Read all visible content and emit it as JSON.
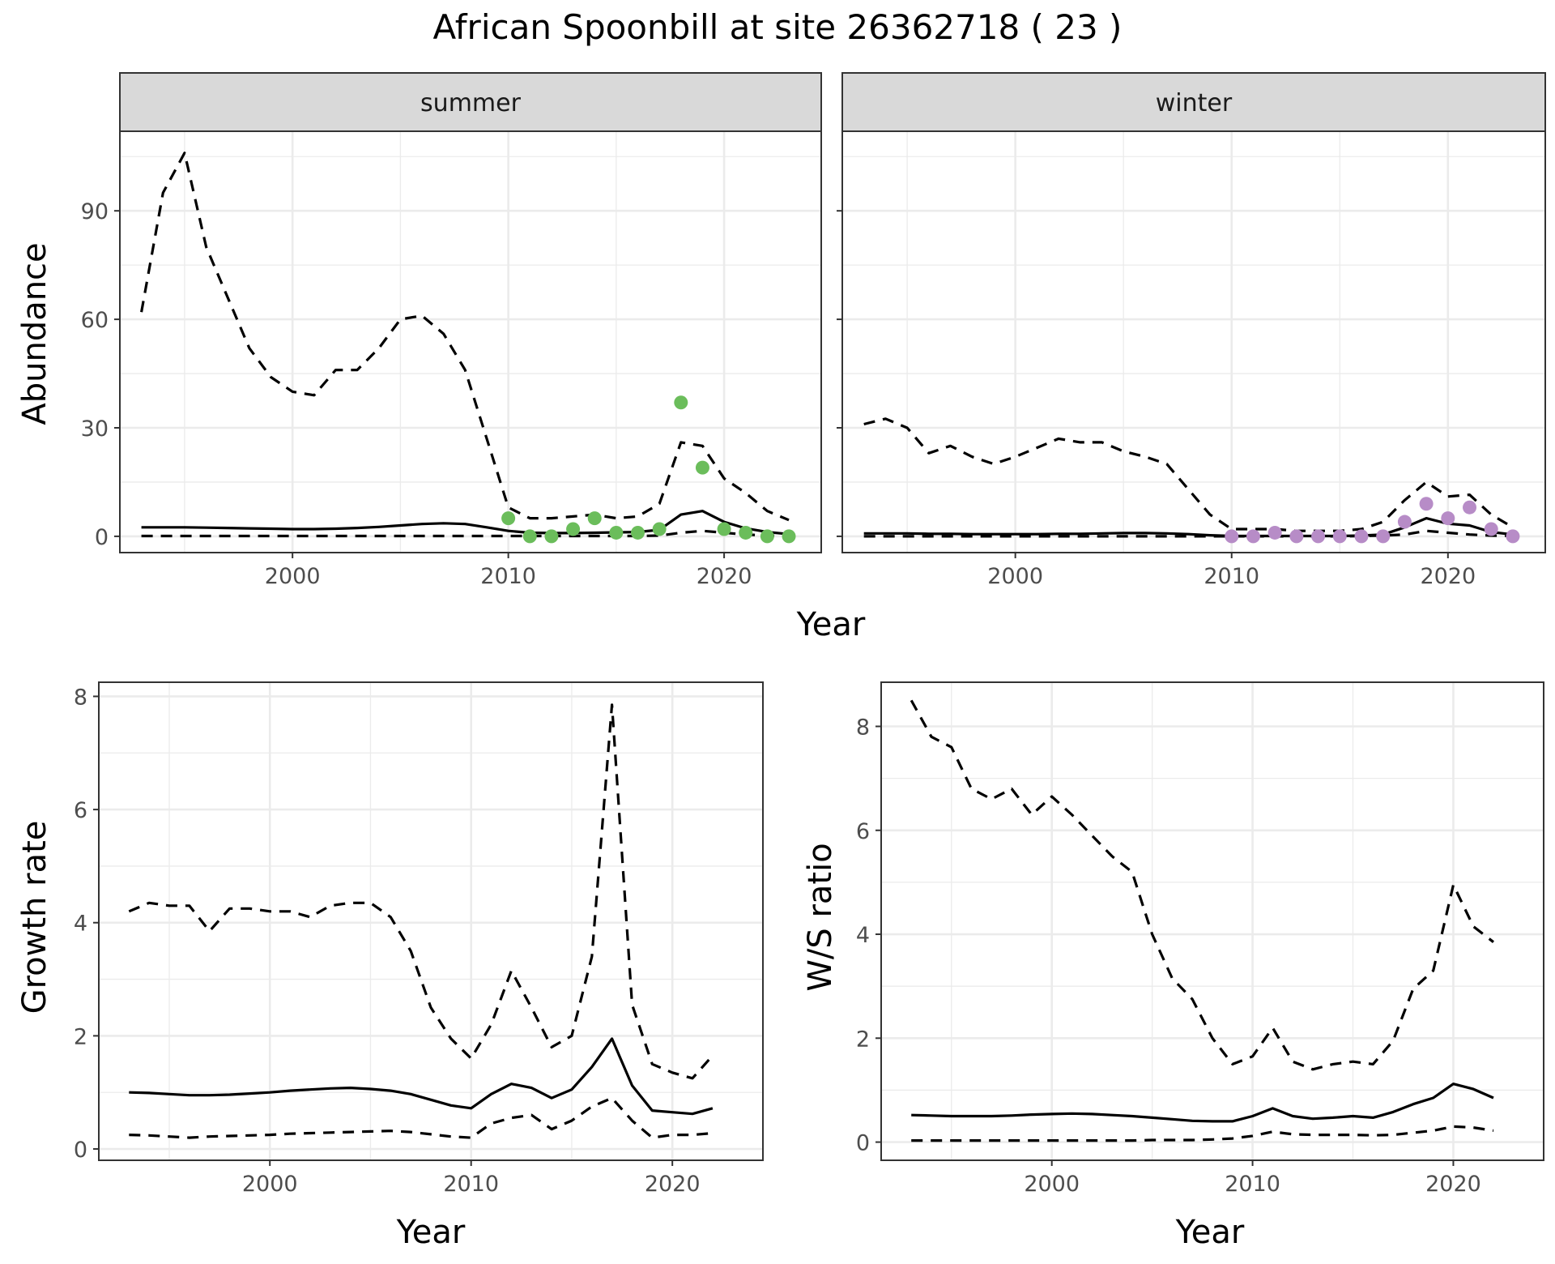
{
  "title": "African Spoonbill at site 26362718 ( 23 )",
  "colors": {
    "summer_points": "#6bbd5b",
    "winter_points": "#b78cc7",
    "line": "#000000"
  },
  "chart_data": [
    {
      "type": "line",
      "facet": "summer",
      "xlabel": "Year",
      "ylabel": "Abundance",
      "xlim": [
        1992,
        2024.5
      ],
      "ylim": [
        -4.5,
        112
      ],
      "xticks": [
        2000,
        2010,
        2020
      ],
      "yticks": [
        0,
        30,
        60,
        90
      ],
      "x": [
        1993,
        1994,
        1995,
        1996,
        1997,
        1998,
        1999,
        2000,
        2001,
        2002,
        2003,
        2004,
        2005,
        2006,
        2007,
        2008,
        2009,
        2010,
        2011,
        2012,
        2013,
        2014,
        2015,
        2016,
        2017,
        2018,
        2019,
        2020,
        2021,
        2022,
        2023
      ],
      "series": [
        {
          "role": "mean",
          "values": [
            2.5,
            2.5,
            2.5,
            2.4,
            2.3,
            2.2,
            2.1,
            2.0,
            2.0,
            2.1,
            2.3,
            2.6,
            3.0,
            3.4,
            3.6,
            3.4,
            2.5,
            1.5,
            1.0,
            0.9,
            0.9,
            1.0,
            1.1,
            1.2,
            1.8,
            6.0,
            7.0,
            4.0,
            2.2,
            1.2,
            0.6
          ]
        },
        {
          "role": "upper",
          "values": [
            62,
            95,
            106,
            80,
            66,
            52,
            44,
            40,
            39,
            46,
            46,
            52,
            60,
            61,
            56,
            46,
            27,
            8,
            5.0,
            5.0,
            5.5,
            6.0,
            5.0,
            5.5,
            9.0,
            26,
            25,
            16,
            12,
            7,
            4.5
          ]
        },
        {
          "role": "lower",
          "values": [
            0.1,
            0.1,
            0.1,
            0.1,
            0.1,
            0.1,
            0.1,
            0.1,
            0.1,
            0.1,
            0.1,
            0.1,
            0.1,
            0.1,
            0.1,
            0.1,
            0.1,
            0.1,
            0.1,
            0.1,
            0.1,
            0.1,
            0.1,
            0.1,
            0.2,
            1.0,
            1.5,
            1.0,
            0.5,
            0.2,
            0.1
          ]
        }
      ],
      "points": {
        "x": [
          2010,
          2011,
          2012,
          2013,
          2014,
          2015,
          2016,
          2017,
          2018,
          2019,
          2020,
          2021,
          2022,
          2023
        ],
        "y": [
          5,
          0,
          0,
          2,
          5,
          1,
          1,
          2,
          37,
          19,
          2,
          1,
          0,
          0
        ]
      }
    },
    {
      "type": "line",
      "facet": "winter",
      "xlabel": "Year",
      "ylabel": "Abundance",
      "xlim": [
        1992,
        2024.5
      ],
      "ylim": [
        -4.5,
        112
      ],
      "xticks": [
        2000,
        2010,
        2020
      ],
      "yticks": [
        0,
        30,
        60,
        90
      ],
      "x": [
        1993,
        1994,
        1995,
        1996,
        1997,
        1998,
        1999,
        2000,
        2001,
        2002,
        2003,
        2004,
        2005,
        2006,
        2007,
        2008,
        2009,
        2010,
        2011,
        2012,
        2013,
        2014,
        2015,
        2016,
        2017,
        2018,
        2019,
        2020,
        2021,
        2022,
        2023
      ],
      "series": [
        {
          "role": "mean",
          "values": [
            0.8,
            0.8,
            0.8,
            0.7,
            0.7,
            0.6,
            0.6,
            0.6,
            0.6,
            0.7,
            0.7,
            0.8,
            0.9,
            0.9,
            0.8,
            0.6,
            0.3,
            0.1,
            0.1,
            0.1,
            0.1,
            0.1,
            0.1,
            0.2,
            0.5,
            2.5,
            5.0,
            3.5,
            3.0,
            1.2,
            0.5
          ]
        },
        {
          "role": "upper",
          "values": [
            31,
            32.5,
            30,
            23,
            25,
            22,
            20,
            22,
            24.5,
            27,
            26,
            26,
            23.5,
            22,
            20,
            13,
            6,
            2,
            2,
            2,
            1.5,
            1.5,
            1.5,
            2,
            4,
            10,
            15,
            11,
            11.5,
            6,
            2.5
          ]
        },
        {
          "role": "lower",
          "values": [
            0.0,
            0.0,
            0.0,
            0.0,
            0.0,
            0.0,
            0.0,
            0.0,
            0.0,
            0.0,
            0.0,
            0.0,
            0.0,
            0.0,
            0.0,
            0.0,
            0.0,
            0.0,
            0.0,
            0.0,
            0.0,
            0.0,
            0.0,
            0.1,
            0.2,
            0.5,
            1.5,
            1.0,
            0.5,
            0.2,
            0.1
          ]
        }
      ],
      "points": {
        "x": [
          2010,
          2011,
          2012,
          2013,
          2014,
          2015,
          2016,
          2017,
          2018,
          2019,
          2020,
          2021,
          2022,
          2023
        ],
        "y": [
          0,
          0,
          1,
          0,
          0,
          0,
          0,
          0,
          4,
          9,
          5,
          8,
          2,
          0
        ]
      }
    },
    {
      "type": "line",
      "xlabel": "Year",
      "ylabel": "Growth rate",
      "xlim": [
        1991.5,
        2024.5
      ],
      "ylim": [
        -0.2,
        8.25
      ],
      "xticks": [
        2000,
        2010,
        2020
      ],
      "yticks": [
        0,
        2,
        4,
        6,
        8
      ],
      "x": [
        1993,
        1994,
        1995,
        1996,
        1997,
        1998,
        1999,
        2000,
        2001,
        2002,
        2003,
        2004,
        2005,
        2006,
        2007,
        2008,
        2009,
        2010,
        2011,
        2012,
        2013,
        2014,
        2015,
        2016,
        2017,
        2018,
        2019,
        2020,
        2021,
        2022
      ],
      "series": [
        {
          "role": "mean",
          "values": [
            1.0,
            0.99,
            0.97,
            0.95,
            0.95,
            0.96,
            0.98,
            1.0,
            1.03,
            1.05,
            1.07,
            1.08,
            1.06,
            1.03,
            0.97,
            0.87,
            0.77,
            0.72,
            0.97,
            1.15,
            1.08,
            0.9,
            1.05,
            1.45,
            1.95,
            1.12,
            0.68,
            0.65,
            0.62,
            0.72
          ]
        },
        {
          "role": "upper",
          "values": [
            4.2,
            4.35,
            4.3,
            4.3,
            3.85,
            4.25,
            4.25,
            4.2,
            4.2,
            4.1,
            4.3,
            4.35,
            4.35,
            4.1,
            3.5,
            2.5,
            1.95,
            1.6,
            2.2,
            3.15,
            2.5,
            1.8,
            2.0,
            3.4,
            7.85,
            2.55,
            1.5,
            1.35,
            1.25,
            1.65
          ]
        },
        {
          "role": "lower",
          "values": [
            0.25,
            0.24,
            0.22,
            0.2,
            0.22,
            0.23,
            0.24,
            0.25,
            0.27,
            0.28,
            0.29,
            0.3,
            0.31,
            0.32,
            0.3,
            0.26,
            0.22,
            0.2,
            0.45,
            0.55,
            0.6,
            0.35,
            0.5,
            0.75,
            0.9,
            0.5,
            0.2,
            0.25,
            0.25,
            0.28
          ]
        }
      ]
    },
    {
      "type": "line",
      "xlabel": "Year",
      "ylabel": "W/S ratio",
      "xlim": [
        1991.5,
        2024.5
      ],
      "ylim": [
        -0.35,
        8.85
      ],
      "xticks": [
        2000,
        2010,
        2020
      ],
      "yticks": [
        0,
        2,
        4,
        6,
        8
      ],
      "x": [
        1993,
        1994,
        1995,
        1996,
        1997,
        1998,
        1999,
        2000,
        2001,
        2002,
        2003,
        2004,
        2005,
        2006,
        2007,
        2008,
        2009,
        2010,
        2011,
        2012,
        2013,
        2014,
        2015,
        2016,
        2017,
        2018,
        2019,
        2020,
        2021,
        2022
      ],
      "series": [
        {
          "role": "mean",
          "values": [
            0.52,
            0.51,
            0.5,
            0.5,
            0.5,
            0.51,
            0.53,
            0.54,
            0.55,
            0.54,
            0.52,
            0.5,
            0.47,
            0.44,
            0.41,
            0.4,
            0.4,
            0.5,
            0.65,
            0.5,
            0.45,
            0.47,
            0.5,
            0.47,
            0.58,
            0.73,
            0.85,
            1.12,
            1.02,
            0.85
          ]
        },
        {
          "role": "upper",
          "values": [
            8.5,
            7.8,
            7.6,
            6.8,
            6.6,
            6.8,
            6.3,
            6.65,
            6.3,
            5.9,
            5.5,
            5.2,
            4.0,
            3.15,
            2.75,
            2.0,
            1.5,
            1.65,
            2.2,
            1.55,
            1.4,
            1.5,
            1.55,
            1.5,
            1.95,
            2.95,
            3.3,
            4.95,
            4.15,
            3.85
          ]
        },
        {
          "role": "lower",
          "values": [
            0.03,
            0.03,
            0.03,
            0.03,
            0.03,
            0.03,
            0.03,
            0.03,
            0.03,
            0.03,
            0.03,
            0.03,
            0.04,
            0.04,
            0.04,
            0.05,
            0.07,
            0.12,
            0.2,
            0.15,
            0.14,
            0.14,
            0.14,
            0.13,
            0.14,
            0.18,
            0.22,
            0.3,
            0.28,
            0.22
          ]
        }
      ]
    }
  ]
}
